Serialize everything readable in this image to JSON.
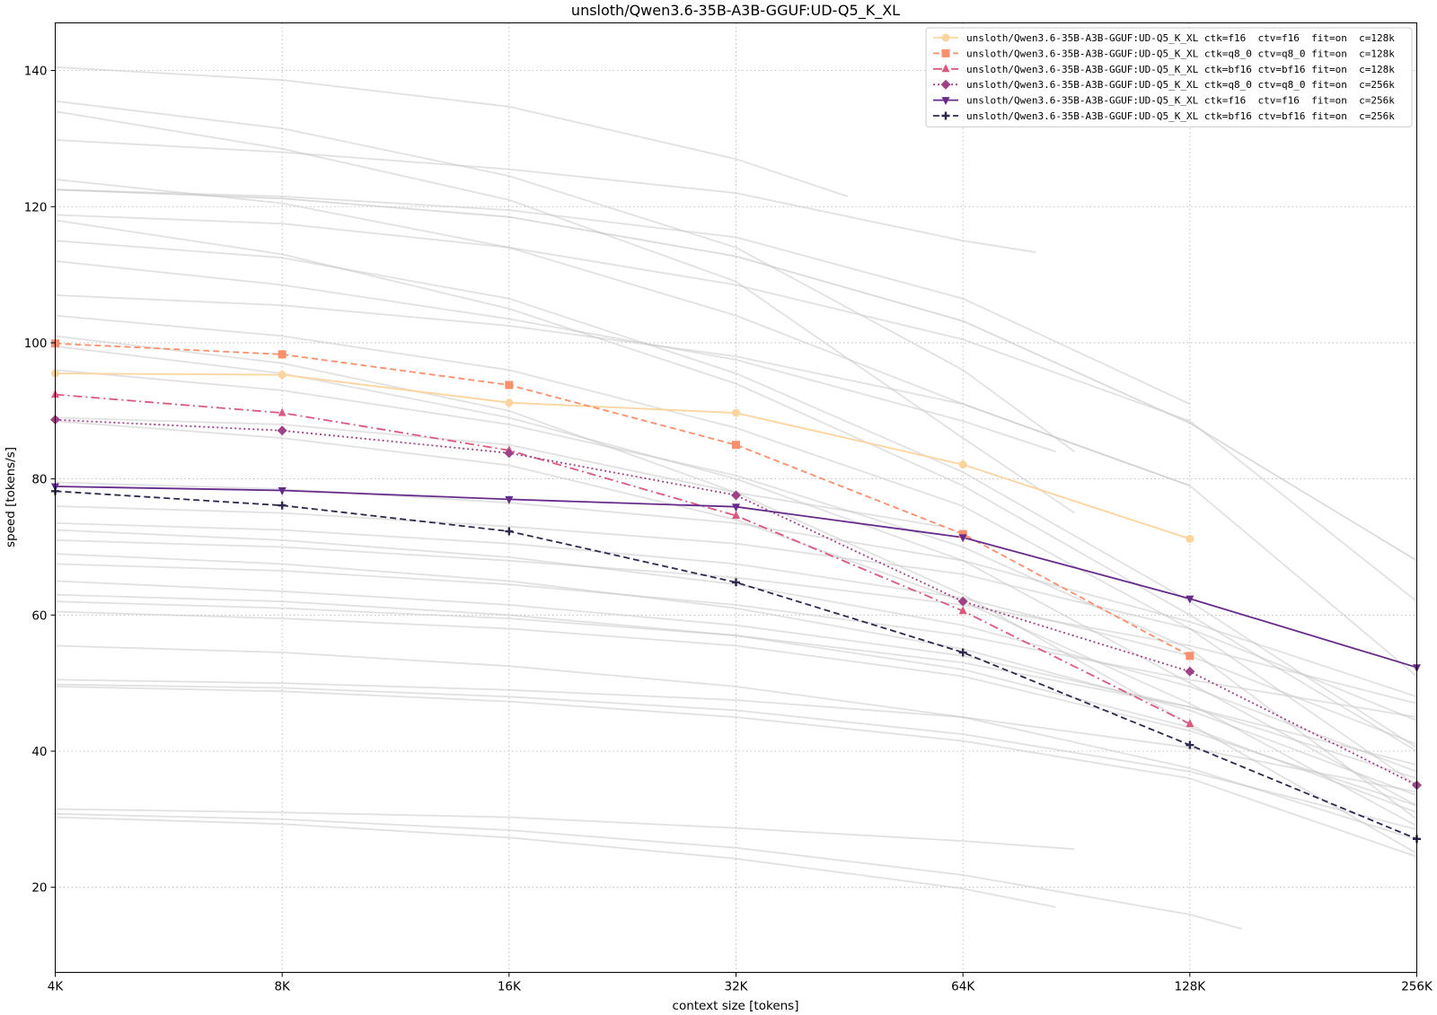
{
  "chart_data": {
    "type": "line",
    "title": "unsloth/Qwen3.6-35B-A3B-GGUF:UD-Q5_K_XL",
    "xlabel": "context size [tokens]",
    "ylabel": "speed [tokens/s]",
    "x_scale": "log2",
    "x_ticks": [
      4,
      8,
      16,
      32,
      64,
      128,
      256
    ],
    "x_tick_labels": [
      "4K",
      "8K",
      "16K",
      "32K",
      "64K",
      "128K",
      "256K"
    ],
    "xlim": [
      4,
      256
    ],
    "y_ticks": [
      20,
      40,
      60,
      80,
      100,
      120,
      140
    ],
    "y_tick_labels": [
      "20",
      "40",
      "60",
      "80",
      "100",
      "120",
      "140"
    ],
    "ylim": [
      7.5,
      147
    ],
    "grid": true,
    "legend_position": "top-right",
    "series": [
      {
        "name": "unsloth/Qwen3.6-35B-A3B-GGUF:UD-Q5_K_XL ctk=f16  ctv=f16  fit=on  c=128k",
        "color": "#fdd49e",
        "dash": "solid",
        "marker": "circle",
        "x": [
          4,
          8,
          16,
          32,
          64,
          128
        ],
        "y": [
          95.5,
          95.3,
          91.2,
          89.7,
          82.1,
          71.2
        ]
      },
      {
        "name": "unsloth/Qwen3.6-35B-A3B-GGUF:UD-Q5_K_XL ctk=q8_0 ctv=q8_0 fit=on  c=128k",
        "color": "#f8906d",
        "dash": "dashed",
        "marker": "square",
        "x": [
          4,
          8,
          16,
          32,
          64,
          128
        ],
        "y": [
          99.9,
          98.3,
          93.8,
          85.0,
          71.9,
          54.0
        ]
      },
      {
        "name": "unsloth/Qwen3.6-35B-A3B-GGUF:UD-Q5_K_XL ctk=bf16 ctv=bf16 fit=on  c=128k",
        "color": "#da5a7f",
        "dash": "dashdot",
        "marker": "triangle-up",
        "x": [
          4,
          8,
          16,
          32,
          64,
          128
        ],
        "y": [
          92.4,
          89.7,
          84.2,
          74.6,
          60.6,
          44.0
        ]
      },
      {
        "name": "unsloth/Qwen3.6-35B-A3B-GGUF:UD-Q5_K_XL ctk=q8_0 ctv=q8_0 fit=on  c=256k",
        "color": "#9e4288",
        "dash": "dotted",
        "marker": "diamond",
        "x": [
          4,
          8,
          16,
          32,
          64,
          128,
          256
        ],
        "y": [
          88.7,
          87.1,
          83.8,
          77.6,
          62.0,
          51.7,
          35.0
        ]
      },
      {
        "name": "unsloth/Qwen3.6-35B-A3B-GGUF:UD-Q5_K_XL ctk=f16  ctv=f16  fit=on  c=256k",
        "color": "#662b8a",
        "dash": "solid",
        "marker": "triangle-down",
        "x": [
          4,
          8,
          16,
          32,
          64,
          128,
          256
        ],
        "y": [
          78.9,
          78.3,
          77.0,
          75.9,
          71.4,
          62.4,
          52.3
        ]
      },
      {
        "name": "unsloth/Qwen3.6-35B-A3B-GGUF:UD-Q5_K_XL ctk=bf16 ctv=bf16 fit=on  c=256k",
        "color": "#2b2a4c",
        "dash": "dashed",
        "marker": "plus",
        "x": [
          4,
          8,
          16,
          32,
          64,
          128,
          256
        ],
        "y": [
          78.2,
          76.1,
          72.3,
          64.8,
          54.5,
          40.9,
          27.1
        ]
      }
    ],
    "background_series": [
      {
        "color": "#c8c8c8",
        "x": [
          4,
          8,
          16,
          32,
          45
        ],
        "y": [
          140.5,
          138.6,
          134.7,
          127.0,
          121.5
        ]
      },
      {
        "color": "#c8c8c8",
        "x": [
          4,
          8,
          16,
          32,
          64,
          90
        ],
        "y": [
          135.5,
          131.5,
          124.5,
          114.0,
          96.0,
          84.0
        ]
      },
      {
        "color": "#c8c8c8",
        "x": [
          4,
          8,
          16,
          32,
          64,
          90
        ],
        "y": [
          134.0,
          128.5,
          121.0,
          109.0,
          86.0,
          75.0
        ]
      },
      {
        "color": "#c8c8c8",
        "x": [
          4,
          8,
          16,
          32,
          64,
          80
        ],
        "y": [
          129.8,
          128.0,
          125.5,
          122.0,
          115.0,
          113.3
        ]
      },
      {
        "color": "#c8c8c8",
        "x": [
          4,
          8,
          16,
          32,
          64,
          128
        ],
        "y": [
          124.0,
          120.5,
          114.0,
          104.0,
          91.0,
          79.0
        ]
      },
      {
        "color": "#bdbdbd",
        "x": [
          4,
          8,
          16,
          32,
          64,
          128,
          256
        ],
        "y": [
          122.5,
          121.2,
          118.5,
          112.7,
          103.2,
          88.2,
          68.0
        ]
      },
      {
        "color": "#c8c8c8",
        "x": [
          4,
          8,
          16,
          32,
          64,
          128
        ],
        "y": [
          122.5,
          121.5,
          119.5,
          115.5,
          106.5,
          91.0
        ]
      },
      {
        "color": "#c8c8c8",
        "x": [
          4,
          8,
          16,
          32,
          64,
          128,
          256
        ],
        "y": [
          118.8,
          117.5,
          114.0,
          108.5,
          100.5,
          88.5,
          62.0
        ]
      },
      {
        "color": "#c8c8c8",
        "x": [
          4,
          8,
          16,
          32,
          64,
          128,
          256
        ],
        "y": [
          118.0,
          113.0,
          105.0,
          94.0,
          79.0,
          60.0,
          40.0
        ]
      },
      {
        "color": "#c8c8c8",
        "x": [
          4,
          8,
          16,
          32,
          64,
          128,
          256
        ],
        "y": [
          115.0,
          112.5,
          106.5,
          95.5,
          81.0,
          62.0,
          40.5
        ]
      },
      {
        "color": "#c8c8c8",
        "x": [
          4,
          8,
          16,
          32,
          64,
          85
        ],
        "y": [
          112.0,
          108.5,
          103.5,
          97.5,
          88.5,
          84.0
        ]
      },
      {
        "color": "#c8c8c8",
        "x": [
          4,
          8,
          16,
          32,
          64,
          128,
          256
        ],
        "y": [
          107.0,
          105.5,
          102.5,
          98.0,
          91.0,
          79.0,
          51.0
        ]
      },
      {
        "color": "#c8c8c8",
        "x": [
          4,
          8,
          16,
          32,
          64,
          128,
          256
        ],
        "y": [
          104.0,
          101.0,
          96.0,
          87.5,
          76.0,
          58.0,
          35.0
        ]
      },
      {
        "color": "#c8c8c8",
        "x": [
          4,
          8,
          16,
          32,
          64,
          128,
          256
        ],
        "y": [
          101.0,
          97.0,
          90.0,
          78.0,
          63.0,
          44.0,
          25.0
        ]
      },
      {
        "color": "#c8c8c8",
        "x": [
          4,
          8,
          16,
          32,
          64,
          128,
          256
        ],
        "y": [
          99.5,
          95.5,
          89.0,
          80.0,
          68.0,
          50.0,
          32.0
        ]
      },
      {
        "color": "#c8c8c8",
        "x": [
          4,
          8,
          16,
          32,
          64,
          128,
          256
        ],
        "y": [
          96.0,
          93.0,
          88.0,
          80.5,
          70.0,
          55.0,
          30.0
        ]
      },
      {
        "color": "#c8c8c8",
        "x": [
          4,
          8,
          16,
          32,
          60
        ],
        "y": [
          89.0,
          88.0,
          85.0,
          78.0,
          73.0
        ]
      },
      {
        "color": "#c8c8c8",
        "x": [
          4,
          8,
          16,
          32,
          64,
          128,
          256
        ],
        "y": [
          88.5,
          86.0,
          82.0,
          74.0,
          62.0,
          47.0,
          29.0
        ]
      },
      {
        "color": "#c8c8c8",
        "x": [
          4,
          8,
          16,
          32,
          64,
          128,
          256
        ],
        "y": [
          79.5,
          78.5,
          76.5,
          73.5,
          68.0,
          59.0,
          48.0
        ]
      },
      {
        "color": "#c8c8c8",
        "x": [
          4,
          8,
          16,
          32,
          64,
          128,
          256
        ],
        "y": [
          76.0,
          75.0,
          73.0,
          70.5,
          66.0,
          58.0,
          44.5
        ]
      },
      {
        "color": "#c8c8c8",
        "x": [
          4,
          8,
          16,
          32,
          64,
          128,
          256
        ],
        "y": [
          73.5,
          72.5,
          70.5,
          67.5,
          62.5,
          54.0,
          41.0
        ]
      },
      {
        "color": "#c8c8c8",
        "x": [
          4,
          8,
          16,
          32,
          64,
          128,
          256
        ],
        "y": [
          72.5,
          71.0,
          68.5,
          64.5,
          58.5,
          49.5,
          37.0
        ]
      },
      {
        "color": "#c8c8c8",
        "x": [
          4,
          8,
          16,
          32,
          64,
          128,
          256
        ],
        "y": [
          71.0,
          70.0,
          68.0,
          65.5,
          61.5,
          55.5,
          47.0
        ]
      },
      {
        "color": "#c8c8c8",
        "x": [
          4,
          8,
          16,
          32,
          64,
          128,
          256
        ],
        "y": [
          69.0,
          67.5,
          65.0,
          61.0,
          55.0,
          46.0,
          33.5
        ]
      },
      {
        "color": "#c8c8c8",
        "x": [
          4,
          8,
          16,
          32,
          64,
          128,
          256
        ],
        "y": [
          67.5,
          66.5,
          64.5,
          61.5,
          57.0,
          50.5,
          45.0
        ]
      },
      {
        "color": "#c8c8c8",
        "x": [
          4,
          8,
          16,
          32,
          64,
          128,
          256
        ],
        "y": [
          65.0,
          63.5,
          61.5,
          58.5,
          54.0,
          46.5,
          36.0
        ]
      },
      {
        "color": "#c8c8c8",
        "x": [
          4,
          8,
          16,
          32,
          64,
          128,
          256
        ],
        "y": [
          63.0,
          62.0,
          60.0,
          57.0,
          52.0,
          43.5,
          31.0
        ]
      },
      {
        "color": "#c8c8c8",
        "x": [
          4,
          8,
          16,
          32,
          64,
          128,
          256
        ],
        "y": [
          62.0,
          61.0,
          59.5,
          57.0,
          53.0,
          46.5,
          38.0
        ]
      },
      {
        "color": "#c8c8c8",
        "x": [
          4,
          8,
          16,
          32,
          64,
          128,
          256
        ],
        "y": [
          60.5,
          59.5,
          58.0,
          55.5,
          51.0,
          43.0,
          32.0
        ]
      },
      {
        "color": "#c8c8c8",
        "x": [
          4,
          8,
          16,
          32,
          64,
          128,
          256
        ],
        "y": [
          55.5,
          54.5,
          52.5,
          49.5,
          45.0,
          37.5,
          27.0
        ]
      },
      {
        "color": "#c8c8c8",
        "x": [
          4,
          8,
          16,
          32,
          64,
          128,
          256
        ],
        "y": [
          50.5,
          50.0,
          49.0,
          47.5,
          45.0,
          40.5,
          34.0
        ]
      },
      {
        "color": "#c8c8c8",
        "x": [
          4,
          8,
          16,
          32,
          64,
          128,
          256
        ],
        "y": [
          49.8,
          49.3,
          48.0,
          46.0,
          42.5,
          37.0,
          28.5
        ]
      },
      {
        "color": "#c8c8c8",
        "x": [
          4,
          8,
          16,
          32,
          64,
          128,
          256
        ],
        "y": [
          49.5,
          48.8,
          47.3,
          45.0,
          41.5,
          36.0,
          24.5
        ]
      },
      {
        "color": "#c8c8c8",
        "x": [
          4,
          8,
          16,
          32,
          64,
          90
        ],
        "y": [
          31.5,
          31.0,
          30.3,
          28.7,
          26.8,
          25.6
        ]
      },
      {
        "color": "#c8c8c8",
        "x": [
          4,
          8,
          16,
          32,
          64,
          128,
          150
        ],
        "y": [
          30.8,
          30.0,
          28.4,
          25.8,
          21.8,
          16.0,
          13.9
        ]
      },
      {
        "color": "#c8c8c8",
        "x": [
          4,
          8,
          16,
          32,
          64,
          85
        ],
        "y": [
          30.3,
          29.3,
          27.3,
          24.2,
          19.8,
          17.1
        ]
      }
    ]
  }
}
